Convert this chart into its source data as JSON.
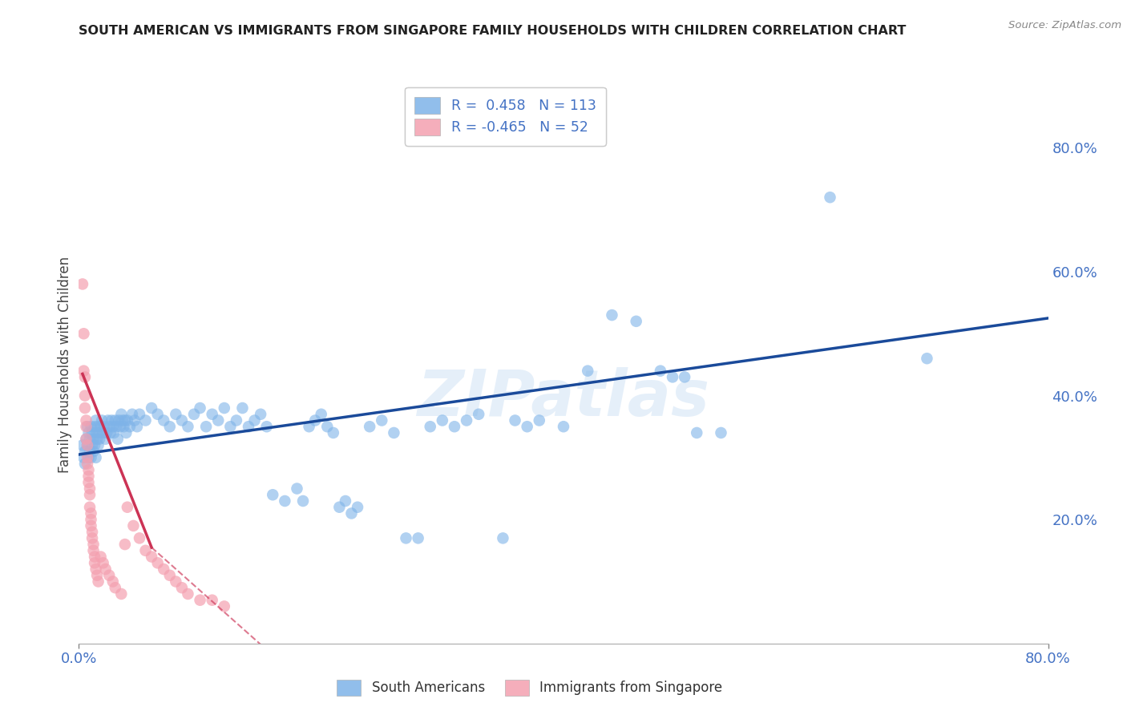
{
  "title": "SOUTH AMERICAN VS IMMIGRANTS FROM SINGAPORE FAMILY HOUSEHOLDS WITH CHILDREN CORRELATION CHART",
  "source": "Source: ZipAtlas.com",
  "ylabel": "Family Households with Children",
  "xlim": [
    0.0,
    0.8
  ],
  "ylim": [
    0.0,
    0.9
  ],
  "ytick_right_labels": [
    "80.0%",
    "60.0%",
    "40.0%",
    "20.0%"
  ],
  "ytick_right_positions": [
    0.8,
    0.6,
    0.4,
    0.2
  ],
  "watermark": "ZIPatlas",
  "legend_R1": "R =  0.458",
  "legend_N1": "N = 113",
  "legend_R2": "R = -0.465",
  "legend_N2": "N = 52",
  "blue_color": "#7EB3E8",
  "pink_color": "#F4A0B0",
  "blue_line_color": "#1A4A9A",
  "pink_line_color": "#CC3355",
  "blue_scatter": [
    [
      0.003,
      0.32
    ],
    [
      0.004,
      0.3
    ],
    [
      0.005,
      0.31
    ],
    [
      0.005,
      0.29
    ],
    [
      0.006,
      0.33
    ],
    [
      0.007,
      0.35
    ],
    [
      0.007,
      0.32
    ],
    [
      0.008,
      0.3
    ],
    [
      0.008,
      0.34
    ],
    [
      0.009,
      0.31
    ],
    [
      0.009,
      0.33
    ],
    [
      0.01,
      0.35
    ],
    [
      0.01,
      0.3
    ],
    [
      0.011,
      0.32
    ],
    [
      0.011,
      0.34
    ],
    [
      0.012,
      0.31
    ],
    [
      0.012,
      0.33
    ],
    [
      0.013,
      0.35
    ],
    [
      0.013,
      0.32
    ],
    [
      0.014,
      0.3
    ],
    [
      0.014,
      0.36
    ],
    [
      0.015,
      0.34
    ],
    [
      0.015,
      0.33
    ],
    [
      0.016,
      0.35
    ],
    [
      0.016,
      0.32
    ],
    [
      0.017,
      0.34
    ],
    [
      0.017,
      0.33
    ],
    [
      0.018,
      0.35
    ],
    [
      0.019,
      0.36
    ],
    [
      0.02,
      0.34
    ],
    [
      0.021,
      0.35
    ],
    [
      0.022,
      0.33
    ],
    [
      0.023,
      0.34
    ],
    [
      0.024,
      0.36
    ],
    [
      0.025,
      0.35
    ],
    [
      0.026,
      0.34
    ],
    [
      0.027,
      0.36
    ],
    [
      0.028,
      0.35
    ],
    [
      0.029,
      0.34
    ],
    [
      0.03,
      0.36
    ],
    [
      0.031,
      0.35
    ],
    [
      0.032,
      0.33
    ],
    [
      0.033,
      0.36
    ],
    [
      0.034,
      0.35
    ],
    [
      0.035,
      0.37
    ],
    [
      0.036,
      0.36
    ],
    [
      0.037,
      0.35
    ],
    [
      0.038,
      0.36
    ],
    [
      0.039,
      0.34
    ],
    [
      0.04,
      0.36
    ],
    [
      0.042,
      0.35
    ],
    [
      0.044,
      0.37
    ],
    [
      0.046,
      0.36
    ],
    [
      0.048,
      0.35
    ],
    [
      0.05,
      0.37
    ],
    [
      0.055,
      0.36
    ],
    [
      0.06,
      0.38
    ],
    [
      0.065,
      0.37
    ],
    [
      0.07,
      0.36
    ],
    [
      0.075,
      0.35
    ],
    [
      0.08,
      0.37
    ],
    [
      0.085,
      0.36
    ],
    [
      0.09,
      0.35
    ],
    [
      0.095,
      0.37
    ],
    [
      0.1,
      0.38
    ],
    [
      0.105,
      0.35
    ],
    [
      0.11,
      0.37
    ],
    [
      0.115,
      0.36
    ],
    [
      0.12,
      0.38
    ],
    [
      0.125,
      0.35
    ],
    [
      0.13,
      0.36
    ],
    [
      0.135,
      0.38
    ],
    [
      0.14,
      0.35
    ],
    [
      0.145,
      0.36
    ],
    [
      0.15,
      0.37
    ],
    [
      0.155,
      0.35
    ],
    [
      0.16,
      0.24
    ],
    [
      0.17,
      0.23
    ],
    [
      0.18,
      0.25
    ],
    [
      0.185,
      0.23
    ],
    [
      0.19,
      0.35
    ],
    [
      0.195,
      0.36
    ],
    [
      0.2,
      0.37
    ],
    [
      0.205,
      0.35
    ],
    [
      0.21,
      0.34
    ],
    [
      0.215,
      0.22
    ],
    [
      0.22,
      0.23
    ],
    [
      0.225,
      0.21
    ],
    [
      0.23,
      0.22
    ],
    [
      0.24,
      0.35
    ],
    [
      0.25,
      0.36
    ],
    [
      0.26,
      0.34
    ],
    [
      0.27,
      0.17
    ],
    [
      0.28,
      0.17
    ],
    [
      0.29,
      0.35
    ],
    [
      0.3,
      0.36
    ],
    [
      0.31,
      0.35
    ],
    [
      0.32,
      0.36
    ],
    [
      0.33,
      0.37
    ],
    [
      0.35,
      0.17
    ],
    [
      0.36,
      0.36
    ],
    [
      0.37,
      0.35
    ],
    [
      0.38,
      0.36
    ],
    [
      0.4,
      0.35
    ],
    [
      0.42,
      0.44
    ],
    [
      0.44,
      0.53
    ],
    [
      0.46,
      0.52
    ],
    [
      0.48,
      0.44
    ],
    [
      0.49,
      0.43
    ],
    [
      0.5,
      0.43
    ],
    [
      0.51,
      0.34
    ],
    [
      0.53,
      0.34
    ],
    [
      0.62,
      0.72
    ],
    [
      0.7,
      0.46
    ]
  ],
  "pink_scatter": [
    [
      0.003,
      0.58
    ],
    [
      0.004,
      0.5
    ],
    [
      0.004,
      0.44
    ],
    [
      0.005,
      0.43
    ],
    [
      0.005,
      0.4
    ],
    [
      0.005,
      0.38
    ],
    [
      0.006,
      0.36
    ],
    [
      0.006,
      0.35
    ],
    [
      0.006,
      0.33
    ],
    [
      0.007,
      0.32
    ],
    [
      0.007,
      0.3
    ],
    [
      0.007,
      0.29
    ],
    [
      0.008,
      0.28
    ],
    [
      0.008,
      0.27
    ],
    [
      0.008,
      0.26
    ],
    [
      0.009,
      0.25
    ],
    [
      0.009,
      0.24
    ],
    [
      0.009,
      0.22
    ],
    [
      0.01,
      0.21
    ],
    [
      0.01,
      0.2
    ],
    [
      0.01,
      0.19
    ],
    [
      0.011,
      0.18
    ],
    [
      0.011,
      0.17
    ],
    [
      0.012,
      0.16
    ],
    [
      0.012,
      0.15
    ],
    [
      0.013,
      0.14
    ],
    [
      0.013,
      0.13
    ],
    [
      0.014,
      0.12
    ],
    [
      0.015,
      0.11
    ],
    [
      0.016,
      0.1
    ],
    [
      0.018,
      0.14
    ],
    [
      0.02,
      0.13
    ],
    [
      0.022,
      0.12
    ],
    [
      0.025,
      0.11
    ],
    [
      0.028,
      0.1
    ],
    [
      0.03,
      0.09
    ],
    [
      0.035,
      0.08
    ],
    [
      0.038,
      0.16
    ],
    [
      0.04,
      0.22
    ],
    [
      0.045,
      0.19
    ],
    [
      0.05,
      0.17
    ],
    [
      0.055,
      0.15
    ],
    [
      0.06,
      0.14
    ],
    [
      0.065,
      0.13
    ],
    [
      0.07,
      0.12
    ],
    [
      0.075,
      0.11
    ],
    [
      0.08,
      0.1
    ],
    [
      0.085,
      0.09
    ],
    [
      0.09,
      0.08
    ],
    [
      0.1,
      0.07
    ],
    [
      0.11,
      0.07
    ],
    [
      0.12,
      0.06
    ]
  ],
  "blue_trendline": [
    [
      0.0,
      0.305
    ],
    [
      0.8,
      0.525
    ]
  ],
  "pink_trendline_solid": [
    [
      0.003,
      0.435
    ],
    [
      0.06,
      0.155
    ]
  ],
  "pink_trendline_dashed": [
    [
      0.06,
      0.155
    ],
    [
      0.175,
      -0.045
    ]
  ],
  "bg_color": "#FFFFFF",
  "grid_color": "#CCCCCC",
  "title_color": "#222222",
  "right_axis_color": "#4472C4",
  "bottom_axis_color": "#4472C4"
}
